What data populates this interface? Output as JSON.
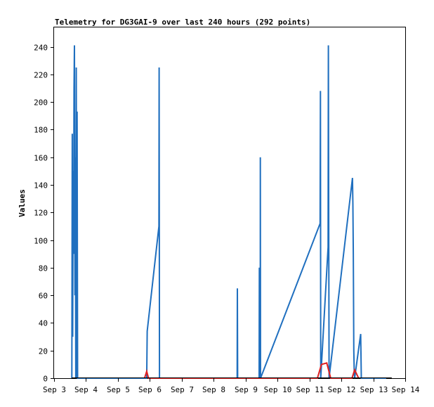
{
  "chart_data": {
    "type": "line",
    "title": "Telemetry for DG3GAI-9 over last 240 hours (292 points)",
    "xlabel": "",
    "ylabel": "Values",
    "ylim": [
      0,
      254
    ],
    "xlim": [
      "2023-09-03T00:00",
      "2023-09-14T00:00"
    ],
    "x_ticks": [
      "Sep 3",
      "Sep 4",
      "Sep 5",
      "Sep 6",
      "Sep 7",
      "Sep 8",
      "Sep 9",
      "Sep 10",
      "Sep 11",
      "Sep 12",
      "Sep 13",
      "Sep 14"
    ],
    "y_ticks": [
      0,
      20,
      40,
      60,
      80,
      100,
      120,
      140,
      160,
      180,
      200,
      220,
      240
    ],
    "grid": false,
    "legend": "none",
    "series": [
      {
        "color": "#1f6fbf",
        "points": [
          [
            "2023-09-03T13:20",
            0
          ],
          [
            "2023-09-03T13:40",
            177
          ],
          [
            "2023-09-03T14:00",
            30
          ],
          [
            "2023-09-03T14:20",
            150
          ],
          [
            "2023-09-03T14:40",
            90
          ],
          [
            "2023-09-03T15:00",
            210
          ],
          [
            "2023-09-03T15:20",
            241
          ],
          [
            "2023-09-03T15:40",
            60
          ],
          [
            "2023-09-03T16:00",
            160
          ],
          [
            "2023-09-03T16:20",
            0
          ],
          [
            "2023-09-03T16:40",
            225
          ],
          [
            "2023-09-03T17:00",
            0
          ],
          [
            "2023-09-03T17:20",
            193
          ],
          [
            "2023-09-03T17:40",
            0
          ],
          [
            "2023-09-03T18:00",
            0
          ],
          [
            "2023-09-05T21:40",
            0
          ],
          [
            "2023-09-05T22:00",
            34
          ],
          [
            "2023-09-06T06:50",
            110
          ],
          [
            "2023-09-06T07:00",
            225
          ],
          [
            "2023-09-06T07:15",
            0
          ],
          [
            "2023-09-08T17:40",
            0
          ],
          [
            "2023-09-08T17:50",
            65
          ],
          [
            "2023-09-08T18:00",
            0
          ],
          [
            "2023-09-09T10:10",
            0
          ],
          [
            "2023-09-09T10:20",
            80
          ],
          [
            "2023-09-09T10:30",
            0
          ],
          [
            "2023-09-09T10:50",
            53
          ],
          [
            "2023-09-09T11:00",
            0
          ],
          [
            "2023-09-09T11:05",
            160
          ],
          [
            "2023-09-09T11:15",
            0
          ],
          [
            "2023-09-11T08:00",
            112
          ],
          [
            "2023-09-11T08:15",
            208
          ],
          [
            "2023-09-11T08:30",
            0
          ],
          [
            "2023-09-11T14:00",
            95
          ],
          [
            "2023-09-11T14:15",
            241
          ],
          [
            "2023-09-11T14:30",
            112
          ],
          [
            "2023-09-11T14:45",
            0
          ],
          [
            "2023-09-12T08:20",
            145
          ],
          [
            "2023-09-12T08:40",
            126
          ],
          [
            "2023-09-12T09:00",
            90
          ],
          [
            "2023-09-12T09:20",
            20
          ],
          [
            "2023-09-12T09:40",
            5
          ],
          [
            "2023-09-12T10:00",
            0
          ],
          [
            "2023-09-12T14:30",
            32
          ],
          [
            "2023-09-12T15:00",
            0
          ],
          [
            "2023-09-12T15:30",
            0
          ],
          [
            "2023-09-13T09:40",
            0
          ]
        ]
      },
      {
        "color": "#e02020",
        "points": [
          [
            "2023-09-05T20:00",
            0
          ],
          [
            "2023-09-05T21:40",
            5
          ],
          [
            "2023-09-05T23:00",
            0
          ],
          [
            "2023-09-11T06:00",
            0
          ],
          [
            "2023-09-11T09:00",
            10
          ],
          [
            "2023-09-11T13:00",
            11
          ],
          [
            "2023-09-11T16:00",
            0
          ],
          [
            "2023-09-12T08:00",
            0
          ],
          [
            "2023-09-12T10:00",
            6
          ],
          [
            "2023-09-12T13:00",
            0
          ]
        ]
      }
    ]
  },
  "colors": {
    "axis": "#000000",
    "plot_bg": "#ffffff"
  }
}
